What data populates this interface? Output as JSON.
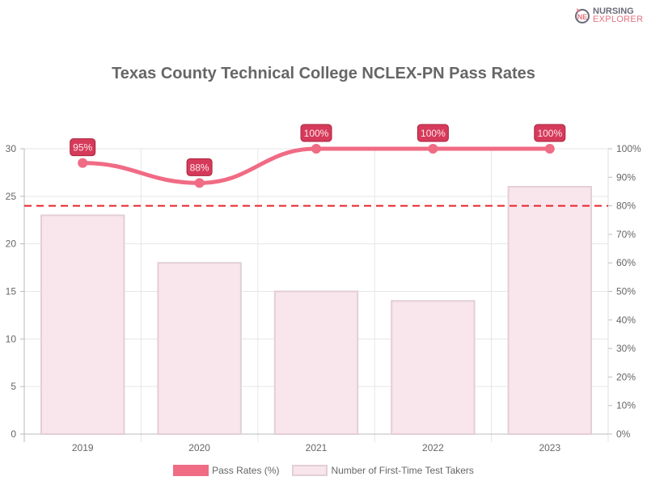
{
  "logo": {
    "line1": "NURSING",
    "line2": "EXPLORER"
  },
  "colors": {
    "line": "#f06b84",
    "label_bg": "#d63a5a",
    "bar_fill": "#f8e6ec",
    "bar_border": "#e3cfd5",
    "threshold": "#e8232a"
  },
  "chart_data": {
    "type": "bar",
    "title": "Texas County Technical College NCLEX-PN Pass Rates",
    "categories": [
      "2019",
      "2020",
      "2021",
      "2022",
      "2023"
    ],
    "series": [
      {
        "name": "Pass Rates (%)",
        "type": "line",
        "axis": "right",
        "values": [
          95,
          88,
          100,
          100,
          100
        ],
        "labels": [
          "95%",
          "88%",
          "100%",
          "100%",
          "100%"
        ]
      },
      {
        "name": "Number of First-Time Test Takers",
        "type": "bar",
        "axis": "left",
        "values": [
          23,
          18,
          15,
          14,
          26
        ]
      }
    ],
    "annotations": [
      {
        "type": "hline",
        "axis": "right",
        "value": 80,
        "style": "dashed",
        "color": "#e8232a"
      }
    ],
    "ylim": [
      0,
      30
    ],
    "ylim_right": [
      0,
      100
    ],
    "left_ticks": [
      "0",
      "5",
      "10",
      "15",
      "20",
      "25",
      "30"
    ],
    "right_ticks": [
      "0%",
      "10%",
      "20%",
      "30%",
      "40%",
      "50%",
      "60%",
      "70%",
      "80%",
      "90%",
      "100%"
    ],
    "grid": true,
    "legend_position": "bottom"
  },
  "legend": [
    {
      "label": "Pass Rates (%)"
    },
    {
      "label": "Number of First-Time Test Takers"
    }
  ]
}
